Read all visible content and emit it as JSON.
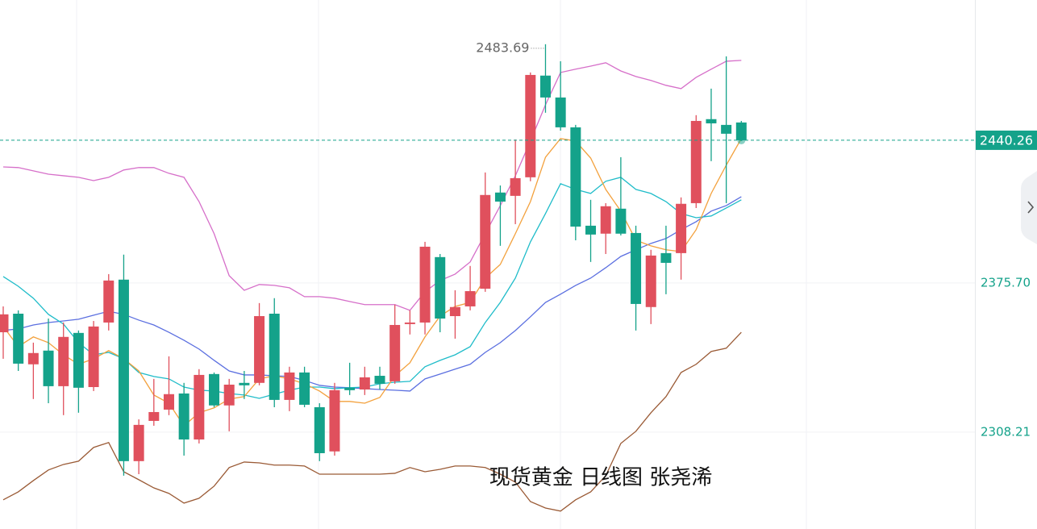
{
  "chart_data": {
    "type": "candlestick",
    "title": "现货黄金 日线图 张尧浠",
    "open": [
      2353.4,
      2361.8,
      2338.9,
      2345.1,
      2329.0,
      2353.1,
      2328.6,
      2357.8,
      2377.2,
      2295.1,
      2313.3,
      2318.4,
      2325.7,
      2304.9,
      2334.5,
      2320.3,
      2330.5,
      2330.5,
      2361.8,
      2322.8,
      2335.2,
      2319.5,
      2299.5,
      2328.3,
      2327.5,
      2333.7,
      2331.2,
      2357.1,
      2357.8,
      2387.4,
      2360.7,
      2365.1,
      2373.1,
      2416.6,
      2415.1,
      2423.5,
      2469.5,
      2459.6,
      2446.1,
      2401.6,
      2398.0,
      2409.3,
      2398.3,
      2364.8,
      2389.2,
      2389.2,
      2411.8,
      2449.8,
      2447.2,
      2448.3
    ],
    "high": [
      2365.1,
      2363.3,
      2348.7,
      2359.6,
      2357.8,
      2354.2,
      2358.5,
      2379.7,
      2388.5,
      2314.0,
      2332.3,
      2342.5,
      2330.5,
      2336.7,
      2335.2,
      2332.3,
      2335.9,
      2366.6,
      2368.8,
      2337.8,
      2337.8,
      2321.3,
      2330.5,
      2339.6,
      2337.8,
      2337.8,
      2365.9,
      2363.3,
      2394.3,
      2388.8,
      2372.4,
      2383.4,
      2425.7,
      2419.8,
      2440.6,
      2470.9,
      2483.69,
      2476.0,
      2447.2,
      2413.3,
      2411.8,
      2432.6,
      2401.6,
      2390.7,
      2401.6,
      2414.4,
      2451.6,
      2463.6,
      2478.2,
      2449.0
    ],
    "low": [
      2341.4,
      2335.9,
      2323.2,
      2321.3,
      2315.9,
      2317.0,
      2326.8,
      2354.2,
      2288.5,
      2289.2,
      2311.1,
      2315.9,
      2297.6,
      2303.1,
      2319.5,
      2308.6,
      2323.2,
      2329.4,
      2319.5,
      2317.7,
      2319.5,
      2295.1,
      2297.6,
      2325.0,
      2325.0,
      2327.5,
      2330.1,
      2352.4,
      2352.4,
      2353.4,
      2350.5,
      2363.3,
      2371.7,
      2392.5,
      2402.3,
      2421.7,
      2452.7,
      2444.6,
      2395.0,
      2385.2,
      2388.8,
      2397.2,
      2354.2,
      2357.1,
      2370.6,
      2377.2,
      2409.6,
      2430.8,
      2411.8,
      2439.9
    ],
    "close": [
      2361.5,
      2339.2,
      2344.0,
      2329.0,
      2351.3,
      2328.3,
      2356.0,
      2376.8,
      2295.1,
      2311.5,
      2317.3,
      2325.4,
      2304.9,
      2334.1,
      2320.3,
      2329.7,
      2329.4,
      2360.7,
      2322.8,
      2335.2,
      2320.6,
      2298.7,
      2327.2,
      2327.2,
      2333.0,
      2330.1,
      2356.7,
      2357.8,
      2392.1,
      2359.6,
      2364.8,
      2372.0,
      2415.5,
      2412.5,
      2423.1,
      2469.8,
      2459.6,
      2446.1,
      2401.2,
      2397.6,
      2410.4,
      2398.0,
      2366.2,
      2388.1,
      2384.8,
      2411.5,
      2449.0,
      2447.9,
      2443.2,
      2440.26
    ],
    "up_color": "#e0505d",
    "down_color": "#14a28a",
    "overlays": [
      {
        "color": "#d66fc9",
        "values": [
          2428.2,
          2427.9,
          2426.4,
          2424.9,
          2424.2,
          2423.5,
          2422.0,
          2423.5,
          2426.8,
          2427.9,
          2427.9,
          2425.3,
          2423.5,
          2412.5,
          2398.0,
          2379.0,
          2372.4,
          2375.0,
          2374.6,
          2373.5,
          2369.5,
          2369.5,
          2368.8,
          2367.3,
          2365.9,
          2365.9,
          2365.9,
          2363.3,
          2371.7,
          2376.8,
          2379.7,
          2385.2,
          2398.0,
          2410.7,
          2424.2,
          2439.9,
          2456.3,
          2470.9,
          2472.4,
          2473.8,
          2475.3,
          2471.6,
          2469.1,
          2467.3,
          2465.1,
          2463.6,
          2468.7,
          2472.4,
          2476.0,
          2476.4
        ]
      },
      {
        "color": "#9a5a35",
        "values": [
          2277.6,
          2281.2,
          2286.3,
          2291.1,
          2293.6,
          2295.1,
          2301.3,
          2303.5,
          2290.3,
          2286.7,
          2283.0,
          2280.5,
          2276.1,
          2278.3,
          2283.8,
          2292.2,
          2294.7,
          2294.3,
          2293.3,
          2293.3,
          2292.9,
          2289.2,
          2289.2,
          2289.2,
          2289.2,
          2289.2,
          2289.6,
          2292.2,
          2290.3,
          2291.4,
          2292.9,
          2292.9,
          2292.2,
          2289.2,
          2285.6,
          2276.8,
          2273.9,
          2272.5,
          2277.6,
          2281.2,
          2288.5,
          2303.1,
          2308.6,
          2317.0,
          2324.3,
          2335.2,
          2338.9,
          2344.7,
          2346.2,
          2353.4
        ]
      },
      {
        "color": "#5b6fe0",
        "values": [
          2354.2,
          2354.9,
          2356.7,
          2357.8,
          2358.5,
          2359.3,
          2361.1,
          2362.9,
          2361.5,
          2358.9,
          2356.7,
          2353.4,
          2349.8,
          2345.8,
          2340.7,
          2335.9,
          2334.1,
          2334.1,
          2333.7,
          2333.4,
          2331.6,
          2329.4,
          2328.6,
          2328.3,
          2327.9,
          2327.5,
          2327.2,
          2326.8,
          2332.3,
          2334.5,
          2336.7,
          2338.9,
          2344.3,
          2348.7,
          2354.2,
          2360.4,
          2366.9,
          2370.6,
          2374.6,
          2377.9,
          2382.6,
          2387.7,
          2390.7,
          2393.6,
          2395.8,
          2399.8,
          2403.4,
          2408.2,
          2410.7,
          2414.7
        ]
      },
      {
        "color": "#1fbcc9",
        "values": [
          2378.6,
          2374.2,
          2368.8,
          2361.5,
          2357.1,
          2348.7,
          2343.2,
          2344.3,
          2341.4,
          2335.2,
          2333.4,
          2332.3,
          2328.6,
          2327.2,
          2326.8,
          2325.7,
          2325.0,
          2323.5,
          2325.4,
          2327.2,
          2328.6,
          2328.6,
          2327.9,
          2328.3,
          2328.6,
          2330.1,
          2330.8,
          2331.2,
          2337.8,
          2340.7,
          2343.2,
          2346.9,
          2357.8,
          2366.9,
          2377.9,
          2394.3,
          2407.1,
          2420.6,
          2418.0,
          2416.2,
          2421.7,
          2423.5,
          2418.0,
          2416.2,
          2412.5,
          2407.1,
          2405.2,
          2406.0,
          2409.6,
          2413.3
        ]
      },
      {
        "color": "#f3a13d",
        "values": [
          2356.0,
          2346.9,
          2351.3,
          2348.7,
          2343.2,
          2338.9,
          2341.4,
          2345.1,
          2341.4,
          2335.9,
          2325.0,
          2321.3,
          2311.1,
          2317.0,
          2319.2,
          2323.2,
          2324.3,
          2332.3,
          2333.7,
          2332.3,
          2330.1,
          2326.8,
          2322.1,
          2322.1,
          2321.3,
          2323.9,
          2333.7,
          2339.6,
          2351.3,
          2360.7,
          2365.1,
          2366.9,
          2377.9,
          2384.1,
          2398.0,
          2412.5,
          2432.6,
          2441.0,
          2439.9,
          2432.2,
          2418.0,
          2408.2,
          2395.0,
          2392.5,
          2390.7,
          2389.9,
          2399.8,
          2416.2,
          2429.0,
          2441.0
        ]
      }
    ],
    "ylim": [
      2264.4,
      2503.7
    ],
    "yticks": [
      2308.21,
      {
        "value": 2375.7,
        "label": "2375.70"
      }
    ],
    "grid": true
  }
}
